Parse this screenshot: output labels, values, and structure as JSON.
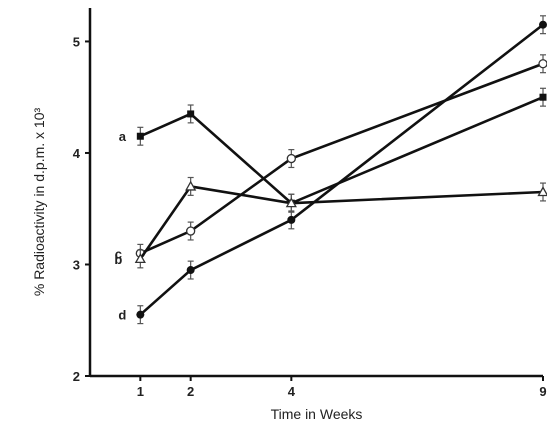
{
  "chart_data": {
    "type": "line",
    "title": "",
    "xlabel": "Time in Weeks",
    "ylabel": "% Radioactivity in d.p.m. x 10³",
    "x_ticks": [
      "1",
      "2",
      "4",
      "9"
    ],
    "y_ticks": [
      "2",
      "3",
      "4",
      "5"
    ],
    "xlim": [
      0,
      9
    ],
    "ylim": [
      2,
      5.3
    ],
    "grid": false,
    "marker_style": "error bars at each point",
    "series": [
      {
        "tag": "a",
        "marker": "filled-square",
        "x": [
          1,
          2,
          4,
          9
        ],
        "y": [
          4.15,
          4.35,
          3.55,
          4.5
        ],
        "err": 0.08
      },
      {
        "tag": "c",
        "marker": "open-circle",
        "x": [
          1,
          2,
          4,
          9
        ],
        "y": [
          3.1,
          3.3,
          3.95,
          4.8
        ],
        "err": 0.08
      },
      {
        "tag": "b",
        "marker": "open-triangle",
        "x": [
          1,
          2,
          4,
          9
        ],
        "y": [
          3.05,
          3.7,
          3.55,
          3.65
        ],
        "err": 0.08
      },
      {
        "tag": "d",
        "marker": "filled-circle",
        "x": [
          1,
          2,
          4,
          9
        ],
        "y": [
          2.55,
          2.95,
          3.4,
          5.15
        ],
        "err": 0.08
      }
    ]
  }
}
